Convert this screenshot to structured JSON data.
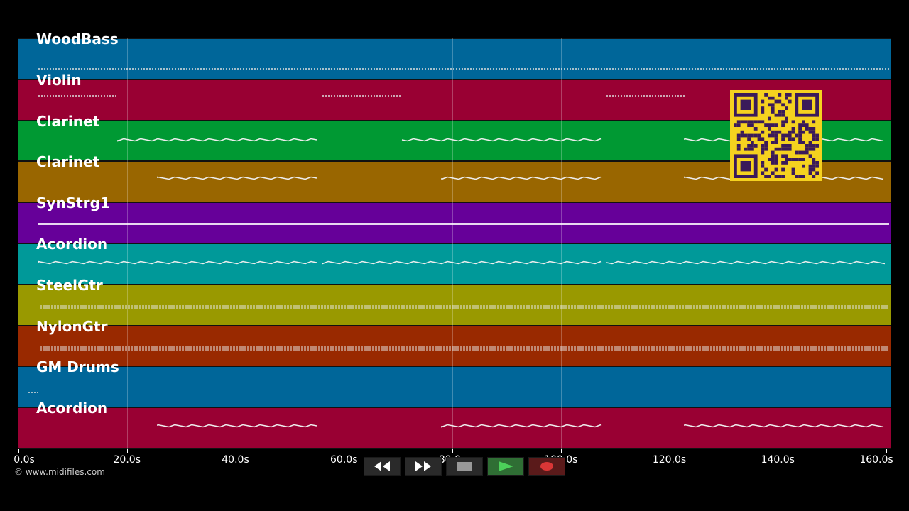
{
  "tracks": [
    {
      "name": "WoodBass",
      "color": "#006699"
    },
    {
      "name": "Violin",
      "color": "#990033"
    },
    {
      "name": "Clarinet",
      "color": "#009933"
    },
    {
      "name": "Clarinet",
      "color": "#996600"
    },
    {
      "name": "SynStrg1",
      "color": "#660099"
    },
    {
      "name": "Acordion",
      "color": "#009999"
    },
    {
      "name": "SteelGtr",
      "color": "#999900"
    },
    {
      "name": "NylonGtr",
      "color": "#992900"
    },
    {
      "name": "GM Drums",
      "color": "#006699"
    },
    {
      "name": "Acordion",
      "color": "#990033"
    }
  ],
  "axis": {
    "ticks": [
      "0.0s",
      "20.0s",
      "40.0s",
      "60.0s",
      "80.0s",
      "100.0s",
      "120.0s",
      "140.0s",
      "160.0s"
    ],
    "max_seconds": 160
  },
  "copyright": "© www.midifiles.com",
  "controls": {
    "rewind": "rewind-icon",
    "fast_forward": "fast-forward-icon",
    "stop": "stop-icon",
    "play": "play-icon",
    "record": "record-icon"
  },
  "colors": {
    "background": "#000000",
    "qr_background": "#f5d21f",
    "qr_modules": "#3a1a5a",
    "play_green": "#3cb043",
    "record_red": "#d93636"
  }
}
